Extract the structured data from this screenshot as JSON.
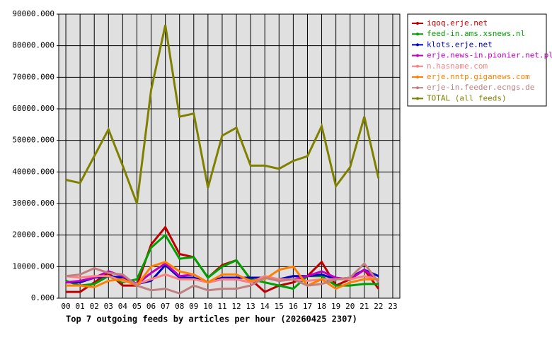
{
  "chart_data": {
    "type": "line",
    "title": "Top 7 outgoing feeds by articles per hour (20260425 2307)",
    "categories": [
      "00",
      "01",
      "02",
      "03",
      "04",
      "05",
      "06",
      "07",
      "08",
      "09",
      "10",
      "11",
      "12",
      "13",
      "14",
      "15",
      "16",
      "17",
      "18",
      "19",
      "20",
      "21",
      "22",
      "23"
    ],
    "series": [
      {
        "name": "iqoq.erje.net",
        "color": "#c00000",
        "values": [
          2000,
          2000,
          5000,
          8000,
          4000,
          4000,
          17000,
          22500,
          14000,
          13000,
          6500,
          10500,
          12000,
          6000,
          2000,
          4000,
          5000,
          7000,
          11500,
          4000,
          6000,
          9000,
          3000,
          null
        ]
      },
      {
        "name": "feed-in.ams.xsnews.nl",
        "color": "#00a000",
        "values": [
          5500,
          4000,
          4500,
          7000,
          5000,
          6000,
          16000,
          20000,
          12500,
          13000,
          6500,
          10000,
          12000,
          6000,
          5000,
          4000,
          3000,
          7000,
          7000,
          4000,
          4000,
          4500,
          4500,
          null
        ]
      },
      {
        "name": "klots.erje.net",
        "color": "#0000c0",
        "values": [
          5000,
          5000,
          6500,
          7000,
          6500,
          4500,
          5500,
          10500,
          6500,
          6500,
          5000,
          6500,
          6500,
          6500,
          6500,
          6000,
          7000,
          7000,
          7500,
          6000,
          6500,
          9000,
          7000,
          null
        ]
      },
      {
        "name": "erje.news-in.pionier.net.pl",
        "color": "#c000c0",
        "values": [
          5000,
          5500,
          6500,
          8500,
          7000,
          4500,
          8000,
          11000,
          7000,
          7500,
          5000,
          6000,
          6000,
          5000,
          6500,
          5500,
          6000,
          7000,
          8500,
          6500,
          6000,
          9000,
          5500,
          null
        ]
      },
      {
        "name": "n.hasname.com",
        "color": "#ff8080",
        "values": [
          7000,
          6500,
          7000,
          7000,
          5500,
          4500,
          6000,
          7500,
          6000,
          6000,
          5000,
          6000,
          6000,
          5000,
          7000,
          6000,
          6000,
          5500,
          6000,
          6000,
          6000,
          7000,
          6000,
          null
        ]
      },
      {
        "name": "erje.nntp.giganews.com",
        "color": "#ff8000",
        "values": [
          4000,
          4000,
          3500,
          5500,
          6000,
          4000,
          10000,
          11500,
          8500,
          7500,
          5000,
          7500,
          7500,
          5500,
          6000,
          9000,
          10000,
          4000,
          6000,
          3000,
          5000,
          6000,
          6000,
          null
        ]
      },
      {
        "name": "erje-in.feeder.ecngs.de",
        "color": "#c08080",
        "values": [
          7000,
          7500,
          9500,
          8000,
          7500,
          4000,
          2500,
          3000,
          1500,
          4000,
          2500,
          3000,
          3000,
          4000,
          6500,
          5500,
          6000,
          4000,
          4500,
          6000,
          6500,
          11000,
          5000,
          null
        ]
      },
      {
        "name": "TOTAL (all feeds)",
        "color": "#808000",
        "values": [
          37500,
          36500,
          45000,
          53500,
          42000,
          30000,
          66000,
          86500,
          57500,
          58500,
          35000,
          51500,
          54000,
          42000,
          42000,
          41000,
          43500,
          45000,
          54500,
          35500,
          41500,
          57500,
          38000,
          null
        ]
      }
    ],
    "ylim": [
      0,
      90000
    ],
    "yticks": [
      {
        "value": 0,
        "label": "0.000"
      },
      {
        "value": 10000,
        "label": "10000.000"
      },
      {
        "value": 20000,
        "label": "20000.000"
      },
      {
        "value": 30000,
        "label": "30000.000"
      },
      {
        "value": 40000,
        "label": "40000.000"
      },
      {
        "value": 50000,
        "label": "50000.000"
      },
      {
        "value": 60000,
        "label": "60000.000"
      },
      {
        "value": 70000,
        "label": "70000.000"
      },
      {
        "value": 80000,
        "label": "80000.000"
      },
      {
        "value": 90000,
        "label": "90000.000"
      }
    ],
    "grid": true,
    "legend": "right"
  }
}
